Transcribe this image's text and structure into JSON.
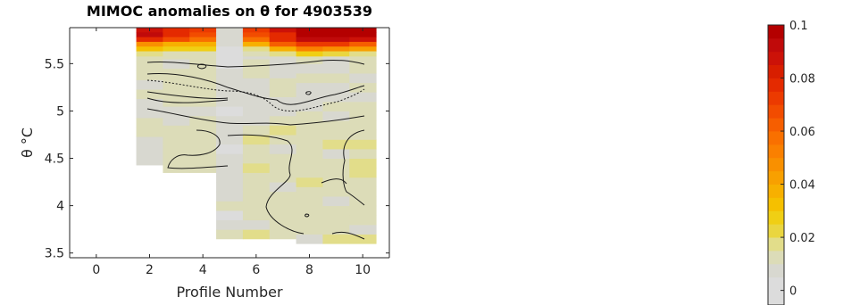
{
  "chart_data": {
    "type": "heatmap",
    "title": "MIMOC anomalies on θ  for 4903539",
    "xlabel": "Profile Number",
    "ylabel": "θ °C",
    "xlim": [
      -1,
      11
    ],
    "ylim": [
      3.45,
      5.88
    ],
    "x_ticks": [
      "0",
      "2",
      "4",
      "6",
      "8",
      "10"
    ],
    "y_ticks": [
      "3.5",
      "4",
      "4.5",
      "5",
      "5.5"
    ],
    "profiles": [
      2,
      3,
      4,
      5,
      6,
      7,
      8,
      9,
      10
    ],
    "profile_ranges": [
      [
        4.43,
        5.88
      ],
      [
        4.35,
        5.88
      ],
      [
        4.35,
        5.88
      ],
      [
        3.65,
        5.88
      ],
      [
        3.65,
        5.88
      ],
      [
        3.65,
        5.88
      ],
      [
        3.6,
        5.88
      ],
      [
        3.6,
        5.88
      ],
      [
        3.6,
        5.88
      ]
    ],
    "surface_anomalies": {
      "profiles": [
        2,
        3,
        4,
        5,
        6,
        7,
        8,
        9,
        10
      ],
      "rows": [
        [
          0.086,
          0.076,
          0.072,
          0.008,
          0.074,
          0.088,
          0.098,
          0.096,
          0.097
        ],
        [
          0.092,
          0.078,
          0.066,
          0.008,
          0.066,
          0.08,
          0.098,
          0.098,
          0.096
        ],
        [
          0.078,
          0.068,
          0.056,
          0.008,
          0.058,
          0.078,
          0.094,
          0.092,
          0.088
        ],
        [
          0.048,
          0.04,
          0.04,
          0.006,
          0.038,
          0.062,
          0.072,
          0.07,
          0.062
        ],
        [
          0.03,
          0.026,
          0.026,
          0.005,
          0.02,
          0.04,
          0.05,
          0.046,
          0.042
        ],
        [
          0.018,
          0.014,
          0.012,
          0.004,
          0.012,
          0.02,
          0.026,
          0.022,
          0.02
        ]
      ]
    },
    "colorbar": {
      "min": 0,
      "max": 0.1,
      "ticks": [
        "0",
        "0.02",
        "0.04",
        "0.06",
        "0.08",
        "0.1"
      ],
      "colors": [
        "#dcdcdc",
        "#d8d8d0",
        "#dcdcb8",
        "#e2dd8a",
        "#ead640",
        "#f0cf14",
        "#f5c000",
        "#f7b000",
        "#f8a000",
        "#f99000",
        "#fa8000",
        "#f97000",
        "#f65e00",
        "#f24c00",
        "#ec3a00",
        "#e42a00",
        "#d81e00",
        "#cc1208",
        "#c00a0a",
        "#b40000"
      ]
    }
  }
}
